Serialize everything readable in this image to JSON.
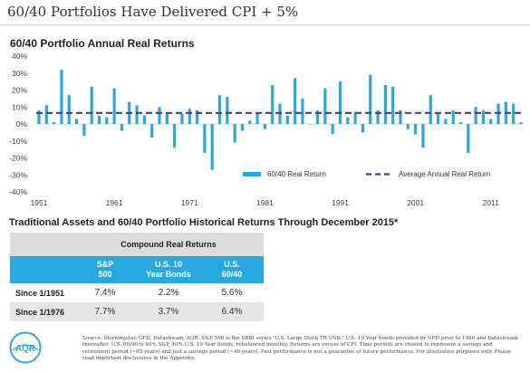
{
  "header": {
    "title": "60/40 Portfolios Have Delivered CPI + 5%"
  },
  "chart_data": {
    "type": "bar",
    "title": "60/40 Portfolio Annual Real Returns",
    "y_ticks": [
      "40%",
      "30%",
      "20%",
      "10%",
      "0%",
      "-10%",
      "-20%",
      "-30%",
      "-40%"
    ],
    "ylim": [
      -40,
      40
    ],
    "x_ticks": [
      "1951",
      "1961",
      "1971",
      "1981",
      "1991",
      "2001",
      "2011"
    ],
    "x_tick_years": [
      1951,
      1961,
      1971,
      1981,
      1991,
      2001,
      2011
    ],
    "years": [
      1951,
      1952,
      1953,
      1954,
      1955,
      1956,
      1957,
      1958,
      1959,
      1960,
      1961,
      1962,
      1963,
      1964,
      1965,
      1966,
      1967,
      1968,
      1969,
      1970,
      1971,
      1972,
      1973,
      1974,
      1975,
      1976,
      1977,
      1978,
      1979,
      1980,
      1981,
      1982,
      1983,
      1984,
      1985,
      1986,
      1987,
      1988,
      1989,
      1990,
      1991,
      1992,
      1993,
      1994,
      1995,
      1996,
      1997,
      1998,
      1999,
      2000,
      2001,
      2002,
      2003,
      2004,
      2005,
      2006,
      2007,
      2008,
      2009,
      2010,
      2011,
      2012,
      2013,
      2014,
      2015
    ],
    "series": [
      {
        "name": "60/40 Real Return",
        "color": "#29a8e0",
        "values": [
          8,
          11,
          1,
          32,
          17,
          3,
          -7,
          22,
          5,
          4,
          21,
          -4,
          13,
          11,
          5,
          -8,
          10,
          6,
          -14,
          6,
          9,
          8,
          -17,
          -27,
          17,
          16,
          -11,
          -4,
          2,
          7,
          -3,
          23,
          12,
          5,
          27,
          15,
          0,
          8,
          21,
          -6,
          25,
          4,
          7,
          -5,
          29,
          8,
          23,
          22,
          8,
          -3,
          -6,
          -14,
          17,
          6,
          3,
          8,
          1,
          -17,
          10,
          8,
          3,
          12,
          13,
          12,
          1
        ]
      },
      {
        "name": "Average Annual Real Return",
        "value": 6.5,
        "color": "#4b3a8c",
        "style": "dashed"
      }
    ],
    "legend": {
      "position": "bottom-right"
    }
  },
  "table": {
    "title": "Traditional Assets and 60/40 Portfolio Historical Returns Through December 2015*",
    "caption": "Compound Real Returns",
    "columns": [
      {
        "line1": "S&P",
        "line2": "500"
      },
      {
        "line1": "U.S. 10",
        "line2": "Year Bonds"
      },
      {
        "line1": "U.S.",
        "line2": "60/40"
      }
    ],
    "rows": [
      {
        "label": "Since 1/1951",
        "values": [
          "7.4%",
          "2.2%",
          "5.6%"
        ]
      },
      {
        "label": "Since 1/1976",
        "values": [
          "7.7%",
          "3.7%",
          "6.4%"
        ]
      }
    ]
  },
  "logo": {
    "text": "AQR",
    "color": "#29a8e0"
  },
  "footnote": "Source: Morningstar, GFD, Datastream, AQR. S&P 500 is the SBBI series \"U.S. Large Stock TR USD.\" U.S. 10 Year bonds provided by GFD prior to 1980 and Datastream thereafter. U.S. 60/40 is 60% S&P, 40% U.S. 10 Year bonds, rebalanced monthly. Returns are excess of CPI. Time periods are chosen to represent a savings and retirement period (~65 years) and just a savings period (~40 years). Past performance is not a guarantee of future performance. For illustrative purposes only. Please read important disclosures in the Appendix."
}
